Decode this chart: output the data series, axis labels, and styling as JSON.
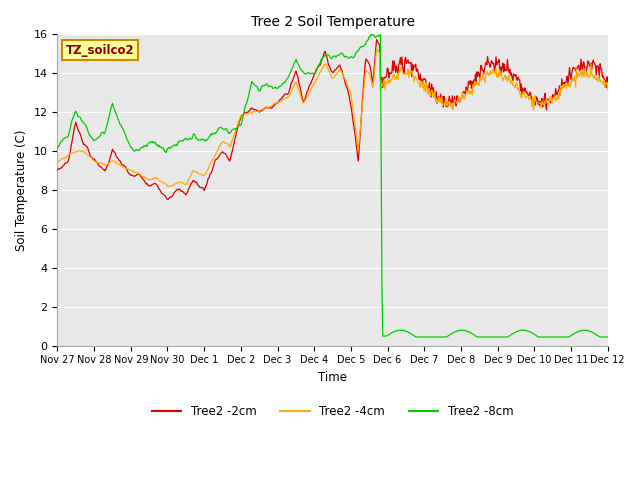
{
  "title": "Tree 2 Soil Temperature",
  "xlabel": "Time",
  "ylabel": "Soil Temperature (C)",
  "ylim": [
    0,
    16
  ],
  "yticks": [
    0,
    2,
    4,
    6,
    8,
    10,
    12,
    14,
    16
  ],
  "line_colors": {
    "2cm": "#dd0000",
    "4cm": "#ffaa00",
    "8cm": "#00cc00"
  },
  "legend_labels": [
    "Tree2 -2cm",
    "Tree2 -4cm",
    "Tree2 -8cm"
  ],
  "box_label": "TZ_soilco2",
  "box_color": "#ffff99",
  "box_edge_color": "#cc8800",
  "background_color": "#e8e8e8",
  "xtick_labels": [
    "Nov 27",
    "Nov 28",
    "Nov 29",
    "Nov 30",
    "Dec 1",
    "Dec 2",
    "Dec 3",
    "Dec 4",
    "Dec 5",
    "Dec 6",
    "Dec 7",
    "Dec 8",
    "Dec 9",
    "Dec 10",
    "Dec 11",
    "Dec 12"
  ],
  "ctrl_t": [
    0,
    0.3,
    0.5,
    0.7,
    1.0,
    1.3,
    1.5,
    1.7,
    2.0,
    2.2,
    2.5,
    2.7,
    3.0,
    3.3,
    3.5,
    3.7,
    4.0,
    4.3,
    4.5,
    4.7,
    5.0,
    5.3,
    5.5,
    5.7,
    6.0,
    6.3,
    6.5,
    6.7,
    7.0,
    7.3,
    7.5,
    7.7,
    8.0,
    8.2,
    8.4,
    8.5,
    8.6,
    8.7,
    8.8,
    9.0,
    9.2,
    9.5,
    9.7,
    10.0,
    10.3,
    10.5,
    10.7,
    11.0
  ],
  "ctrl_r": [
    9.0,
    9.5,
    11.5,
    10.5,
    9.5,
    9.0,
    10.0,
    9.5,
    8.7,
    8.8,
    8.2,
    8.3,
    7.6,
    8.0,
    7.8,
    8.5,
    8.0,
    9.5,
    10.0,
    9.5,
    11.8,
    12.2,
    12.0,
    12.2,
    12.5,
    13.0,
    14.2,
    12.5,
    14.0,
    15.0,
    14.0,
    14.5,
    12.5,
    9.5,
    14.8,
    14.5,
    13.5,
    15.8,
    15.5,
    15.0,
    14.0,
    12.5,
    13.5,
    13.5,
    14.5,
    14.0,
    14.5,
    15.8
  ],
  "ctrl_o": [
    9.5,
    9.8,
    10.0,
    10.0,
    9.5,
    9.3,
    9.5,
    9.3,
    9.0,
    8.9,
    8.5,
    8.6,
    8.2,
    8.4,
    8.3,
    9.0,
    8.7,
    9.8,
    10.5,
    10.2,
    11.8,
    12.0,
    12.0,
    12.2,
    12.5,
    12.8,
    13.5,
    12.5,
    13.5,
    14.5,
    13.8,
    14.2,
    13.0,
    10.0,
    14.2,
    14.0,
    13.2,
    15.2,
    15.0,
    14.5,
    13.5,
    12.5,
    13.0,
    13.2,
    14.0,
    13.5,
    14.0,
    15.2
  ],
  "ctrl_g": [
    10.3,
    10.8,
    12.0,
    11.5,
    10.5,
    11.0,
    12.5,
    11.5,
    10.2,
    10.0,
    10.5,
    10.3,
    10.0,
    10.5,
    10.5,
    10.8,
    10.5,
    11.0,
    11.3,
    11.0,
    11.3,
    13.5,
    13.2,
    13.5,
    13.2,
    13.8,
    14.8,
    14.0,
    14.0,
    15.0,
    14.8,
    15.0,
    14.8,
    15.2,
    15.5,
    15.8,
    16.0,
    16.0,
    15.8,
    0.6,
    0.5,
    0.4,
    0.5,
    0.6,
    0.8,
    0.5,
    0.4,
    0.5
  ],
  "drop_day": 8.8
}
